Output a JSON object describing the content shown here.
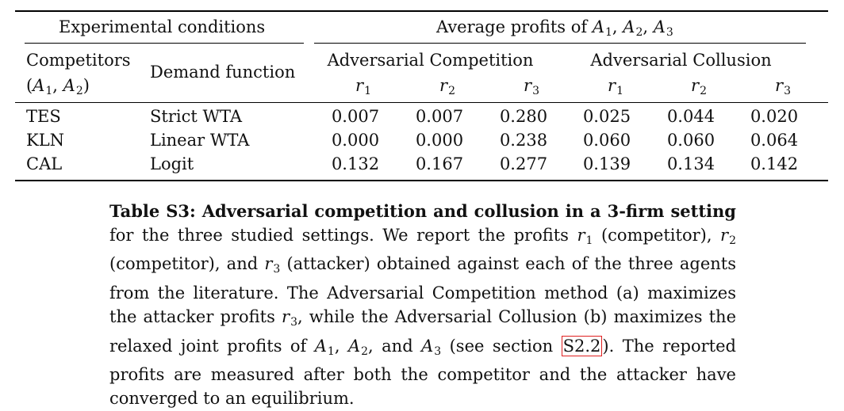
{
  "table": {
    "group_headers": {
      "conditions": "Experimental conditions",
      "profits_prefix": "Average profits of ",
      "profits_agents": [
        "A",
        "A",
        "A"
      ],
      "profits_subs": [
        "1",
        "2",
        "3"
      ]
    },
    "sub_headers": {
      "competitors_line1": "Competitors",
      "competitors_line2_open": "(",
      "competitors_agent": "A",
      "competitors_sub1": "1",
      "competitors_sub2": "2",
      "competitors_line2_close": ")",
      "demand_function": "Demand function",
      "adv_competition": "Adversarial Competition",
      "adv_collusion": "Adversarial Collusion"
    },
    "profit_columns": [
      {
        "var": "r",
        "sub": "1"
      },
      {
        "var": "r",
        "sub": "2"
      },
      {
        "var": "r",
        "sub": "3"
      },
      {
        "var": "r",
        "sub": "1"
      },
      {
        "var": "r",
        "sub": "2"
      },
      {
        "var": "r",
        "sub": "3"
      }
    ],
    "rows": [
      {
        "competitors": "TES",
        "demand": "Strict WTA",
        "values": [
          "0.007",
          "0.007",
          "0.280",
          "0.025",
          "0.044",
          "0.020"
        ]
      },
      {
        "competitors": "KLN",
        "demand": "Linear WTA",
        "values": [
          "0.000",
          "0.000",
          "0.238",
          "0.060",
          "0.060",
          "0.064"
        ]
      },
      {
        "competitors": "CAL",
        "demand": "Logit",
        "values": [
          "0.132",
          "0.167",
          "0.277",
          "0.139",
          "0.134",
          "0.142"
        ]
      }
    ]
  },
  "caption": {
    "title": "Table S3: Adversarial competition and collusion in a 3-firm setting",
    "t1": " for the three studied settings. We report the profits ",
    "r1_var": "r",
    "r1_sub": "1",
    "t2": " (competitor), ",
    "r2_var": "r",
    "r2_sub": "2",
    "t3": " (competitor), and ",
    "r3_var": "r",
    "r3_sub": "3",
    "t4": " (attacker) obtained against each of the three agents from the literature. The Adversarial Competition method (a) maximizes the attacker profits ",
    "r3b_var": "r",
    "r3b_sub": "3",
    "t5": ", while the Adversarial Collusion (b) maximizes the relaxed joint profits of ",
    "a1_var": "A",
    "a1_sub": "1",
    "t6": ", ",
    "a2_var": "A",
    "a2_sub": "2",
    "t7": ", and ",
    "a3_var": "A",
    "a3_sub": "3",
    "t8": " (see section ",
    "ref": "S2.2",
    "t9": "). The reported profits are measured after both the competitor and the attacker have converged to an equilibrium."
  }
}
